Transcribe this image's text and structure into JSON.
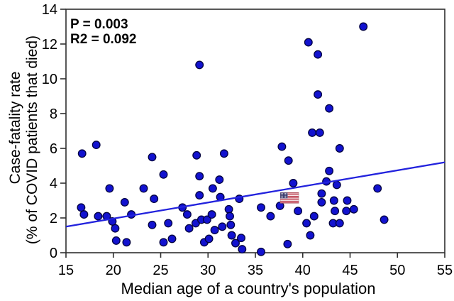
{
  "chart_data": {
    "type": "scatter",
    "title": "",
    "xlabel": "Median age of a country's population",
    "ylabel_line1": "Case-fatality rate",
    "ylabel_line2": "(% of COVID patients that died)",
    "xlim": [
      15,
      55
    ],
    "ylim": [
      0,
      14
    ],
    "x_ticks": [
      15,
      20,
      25,
      30,
      35,
      40,
      45,
      50,
      55
    ],
    "y_ticks": [
      0,
      2,
      4,
      6,
      8,
      10,
      12,
      14
    ],
    "grid": false,
    "legend": "none",
    "annotation": {
      "p_label": "P = 0.003",
      "r2_label": "R2 = 0.092"
    },
    "stats": {
      "p_value": 0.003,
      "r_squared": 0.092
    },
    "trendline": {
      "x1": 15,
      "y1": 1.5,
      "x2": 55,
      "y2": 5.2
    },
    "marker": {
      "fill": "#1212cf",
      "stroke": "#000040",
      "radius": 5.3
    },
    "line_color": "#2222dd",
    "frame_color": "#2f2f2f",
    "flag_marker": {
      "x": 38.6,
      "y": 3.15,
      "label": "united-states-flag",
      "red": "#b22234",
      "navy": "#3c3b6e",
      "white": "#ffffff"
    },
    "points": [
      [
        16.6,
        2.6
      ],
      [
        16.7,
        5.7
      ],
      [
        16.9,
        2.2
      ],
      [
        18.2,
        6.2
      ],
      [
        18.4,
        2.1
      ],
      [
        19.3,
        2.1
      ],
      [
        19.6,
        3.7
      ],
      [
        19.9,
        1.8
      ],
      [
        20.2,
        1.4
      ],
      [
        20.3,
        0.7
      ],
      [
        21.2,
        2.9
      ],
      [
        21.4,
        0.6
      ],
      [
        21.9,
        2.2
      ],
      [
        23.2,
        3.7
      ],
      [
        24.1,
        5.5
      ],
      [
        24.1,
        1.6
      ],
      [
        24.3,
        3.1
      ],
      [
        25.3,
        4.5
      ],
      [
        25.3,
        0.6
      ],
      [
        25.8,
        1.7
      ],
      [
        26.2,
        0.8
      ],
      [
        27.3,
        2.6
      ],
      [
        27.8,
        2.2
      ],
      [
        28.0,
        1.4
      ],
      [
        28.7,
        1.7
      ],
      [
        28.8,
        5.6
      ],
      [
        29.1,
        10.8
      ],
      [
        29.1,
        4.4
      ],
      [
        29.1,
        3.3
      ],
      [
        29.3,
        1.9
      ],
      [
        29.6,
        0.6
      ],
      [
        29.9,
        1.9
      ],
      [
        30.1,
        0.8
      ],
      [
        30.4,
        2.2
      ],
      [
        30.5,
        3.7
      ],
      [
        30.7,
        1.3
      ],
      [
        31.2,
        4.2
      ],
      [
        31.3,
        3.2
      ],
      [
        31.5,
        1.5
      ],
      [
        31.7,
        5.7
      ],
      [
        32.2,
        2.5
      ],
      [
        32.3,
        2.1
      ],
      [
        32.4,
        1.6
      ],
      [
        32.5,
        1.0
      ],
      [
        32.9,
        0.55
      ],
      [
        33.3,
        3.1
      ],
      [
        33.5,
        0.85
      ],
      [
        33.6,
        0.2
      ],
      [
        35.6,
        2.6
      ],
      [
        35.6,
        0.05
      ],
      [
        36.6,
        2.1
      ],
      [
        37.6,
        2.7
      ],
      [
        37.8,
        6.1
      ],
      [
        38.4,
        0.5
      ],
      [
        38.5,
        5.3
      ],
      [
        39.0,
        4.0
      ],
      [
        39.5,
        2.4
      ],
      [
        40.4,
        1.7
      ],
      [
        40.6,
        12.1
      ],
      [
        40.8,
        1.0
      ],
      [
        41.0,
        6.9
      ],
      [
        41.2,
        2.1
      ],
      [
        41.6,
        11.4
      ],
      [
        41.6,
        9.1
      ],
      [
        41.8,
        6.9
      ],
      [
        42.0,
        3.4
      ],
      [
        42.0,
        2.9
      ],
      [
        42.5,
        4.1
      ],
      [
        42.8,
        8.3
      ],
      [
        42.8,
        4.7
      ],
      [
        43.2,
        1.7
      ],
      [
        43.3,
        3.0
      ],
      [
        43.4,
        2.4
      ],
      [
        43.6,
        3.9
      ],
      [
        43.9,
        6.0
      ],
      [
        43.9,
        1.7
      ],
      [
        44.6,
        2.4
      ],
      [
        44.7,
        3.0
      ],
      [
        45.4,
        2.5
      ],
      [
        46.4,
        13.0
      ],
      [
        47.9,
        3.7
      ],
      [
        48.6,
        1.9
      ]
    ]
  }
}
